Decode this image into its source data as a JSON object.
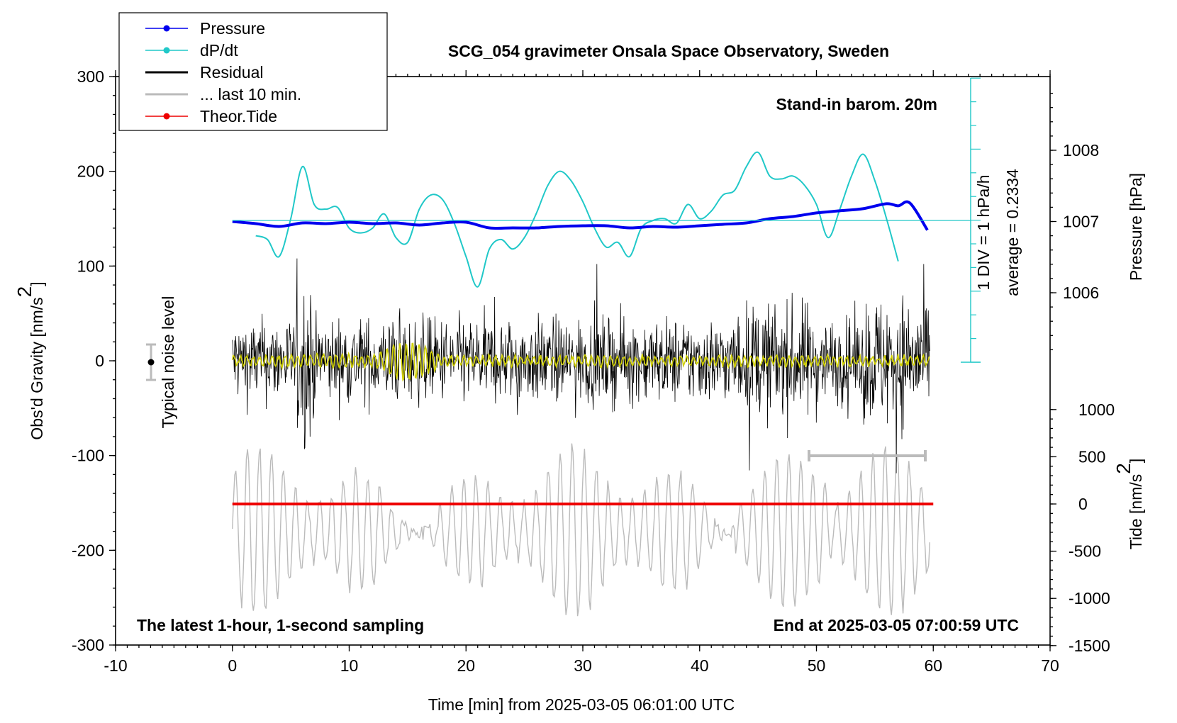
{
  "chart_data": {
    "type": "line",
    "title": "SCG_054 gravimeter Onsala Space Observatory, Sweden",
    "xlabel": "Time [min] from 2025-03-05 06:01:00 UTC",
    "ylabel_left": "Obs'd Gravity [nm/s",
    "ylabel_right_top": "Pressure [hPa]",
    "ylabel_right_bottom": "Tide [nm/s",
    "superscript": "2",
    "xlim": [
      -10,
      70
    ],
    "ylim_left": [
      -300,
      300
    ],
    "pressure_ylim": [
      1005,
      1009
    ],
    "tide_ylim": [
      -1500,
      1500
    ],
    "x_ticks": [
      "-10",
      "0",
      "10",
      "20",
      "30",
      "40",
      "50",
      "60",
      "70"
    ],
    "x_tick_values": [
      -10,
      0,
      10,
      20,
      30,
      40,
      50,
      60,
      70
    ],
    "y_ticks_left": [
      "-300",
      "-200",
      "-100",
      "0",
      "100",
      "200",
      "300"
    ],
    "y_tick_values_left": [
      -300,
      -200,
      -100,
      0,
      100,
      200,
      300
    ],
    "pressure_ticks": [
      "1006",
      "1007",
      "1008"
    ],
    "pressure_tick_values": [
      1006,
      1007,
      1008
    ],
    "tide_ticks": [
      "-1500",
      "-1000",
      "-500",
      "0",
      "500",
      "1000"
    ],
    "tide_tick_values": [
      -1500,
      -1000,
      -500,
      0,
      500,
      1000
    ],
    "legend": [
      {
        "label": "Pressure",
        "color": "#0000ee"
      },
      {
        "label": "dP/dt",
        "color": "#20c8c8"
      },
      {
        "label": "Residual",
        "color": "#000000"
      },
      {
        "label": "... last 10 min.",
        "color": "#bbbbbb"
      },
      {
        "label": "Theor.Tide",
        "color": "#ee0000"
      }
    ],
    "annotations": {
      "barometer": "Stand-in barom. 20m",
      "scale": "1 DIV = 1 hPa/h",
      "average": "average = 0.2334",
      "noise": "Typical noise level",
      "note_left": "The latest 1-hour, 1-second sampling",
      "note_right": "End at 2025-03-05 07:00:59 UTC"
    },
    "colors": {
      "pressure": "#0000ee",
      "dpdt": "#20c8c8",
      "residual": "#000000",
      "filtered": "#d0d000",
      "last10": "#bbbbbb",
      "tide": "#ee0000"
    },
    "series": [
      {
        "name": "Pressure",
        "axis": "pressure",
        "x": [
          0,
          2,
          4,
          6,
          8,
          10,
          12,
          14,
          16,
          18,
          20,
          22,
          24,
          26,
          28,
          30,
          32,
          34,
          36,
          38,
          40,
          42,
          44,
          46,
          48,
          50,
          52,
          54,
          56,
          57,
          58,
          59.5
        ],
        "values": [
          1007.0,
          1006.97,
          1006.93,
          1006.98,
          1006.97,
          1006.99,
          1006.97,
          1006.98,
          1006.95,
          1006.98,
          1006.99,
          1006.91,
          1006.91,
          1006.91,
          1006.93,
          1006.94,
          1006.94,
          1006.91,
          1006.93,
          1006.92,
          1006.94,
          1006.96,
          1006.98,
          1007.04,
          1007.07,
          1007.12,
          1007.15,
          1007.18,
          1007.25,
          1007.22,
          1007.26,
          1006.88
        ]
      },
      {
        "name": "dP/dt",
        "axis": "left",
        "x": [
          2,
          3,
          4,
          5,
          6,
          7,
          8,
          9,
          10,
          11,
          12,
          13,
          14,
          15,
          16,
          17,
          18,
          19,
          20,
          21,
          22,
          23,
          24,
          25,
          26,
          27,
          28,
          29,
          30,
          31,
          32,
          33,
          34,
          35,
          36,
          37,
          38,
          39,
          40,
          41,
          42,
          43,
          44,
          45,
          46,
          47,
          48,
          49,
          50,
          51,
          52,
          53,
          54,
          55,
          56,
          57
        ],
        "values": [
          132,
          128,
          110,
          150,
          205,
          165,
          160,
          162,
          140,
          135,
          140,
          155,
          130,
          125,
          160,
          175,
          170,
          145,
          110,
          78,
          118,
          128,
          118,
          130,
          155,
          185,
          200,
          190,
          168,
          140,
          120,
          125,
          110,
          140,
          148,
          150,
          145,
          165,
          150,
          158,
          175,
          180,
          205,
          220,
          195,
          192,
          195,
          185,
          165,
          130,
          160,
          195,
          218,
          190,
          150,
          105
        ]
      },
      {
        "name": "Theor.Tide",
        "axis": "tide",
        "x": [
          0,
          60
        ],
        "values": [
          0,
          0
        ]
      }
    ]
  }
}
